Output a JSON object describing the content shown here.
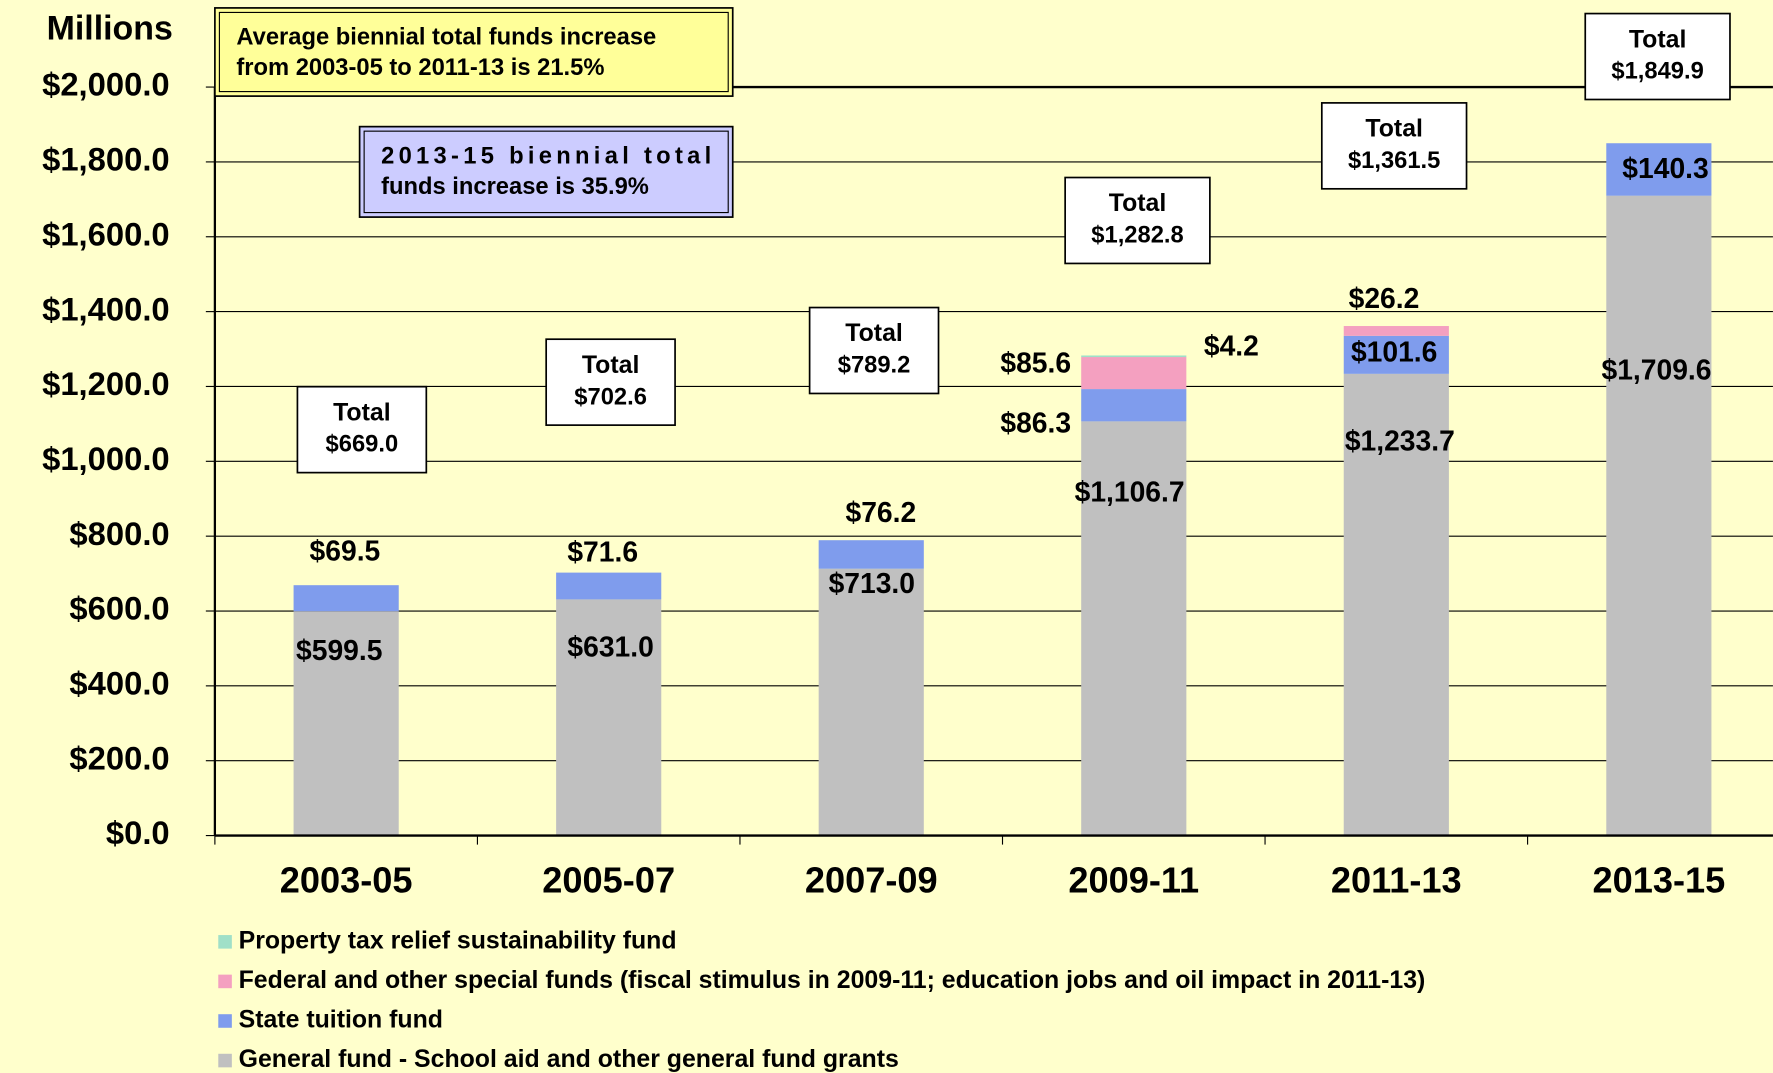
{
  "chart_data": {
    "type": "stacked_bar",
    "y_axis_label": "Millions",
    "categories": [
      "2003-05",
      "2005-07",
      "2007-09",
      "2009-11",
      "2011-13",
      "2013-15"
    ],
    "series": [
      {
        "name": "General fund - School aid and other general fund grants",
        "color": "#c0c0c0",
        "values": [
          599.5,
          631.0,
          713.0,
          1106.7,
          1233.7,
          1709.6
        ],
        "value_labels": [
          "$599.5",
          "$631.0",
          "$713.0",
          "$1,106.7",
          "$1,233.7",
          "$1,709.6"
        ]
      },
      {
        "name": "State tuition fund",
        "color": "#7f9ced",
        "values": [
          69.5,
          71.6,
          76.2,
          86.3,
          101.6,
          140.3
        ],
        "value_labels": [
          "$69.5",
          "$71.6",
          "$76.2",
          "$86.3",
          "$101.6",
          "$140.3"
        ]
      },
      {
        "name": "Federal and other special funds (fiscal stimulus in 2009-11; education jobs and oil impact in 2011-13)",
        "color": "#f4a0c0",
        "values": [
          null,
          null,
          null,
          85.6,
          26.2,
          null
        ],
        "value_labels": [
          null,
          null,
          null,
          "$85.6",
          "$26.2",
          null
        ]
      },
      {
        "name": "Property tax relief sustainability fund",
        "color": "#a0e0c8",
        "values": [
          null,
          null,
          null,
          4.2,
          null,
          null
        ],
        "value_labels": [
          null,
          null,
          null,
          "$4.2",
          null,
          null
        ]
      }
    ],
    "totals": {
      "label": "Total",
      "values": [
        669.0,
        702.6,
        789.2,
        1282.8,
        1361.5,
        1849.9
      ],
      "value_labels": [
        "$669.0",
        "$702.6",
        "$789.2",
        "$1,282.8",
        "$1,361.5",
        "$1,849.9"
      ]
    },
    "ylim": [
      0,
      2000
    ],
    "yticks": [
      {
        "value": 0,
        "label": "$0.0"
      },
      {
        "value": 200,
        "label": "$200.0"
      },
      {
        "value": 400,
        "label": "$400.0"
      },
      {
        "value": 600,
        "label": "$600.0"
      },
      {
        "value": 800,
        "label": "$800.0"
      },
      {
        "value": 1000,
        "label": "$1,000.0"
      },
      {
        "value": 1200,
        "label": "$1,200.0"
      },
      {
        "value": 1400,
        "label": "$1,400.0"
      },
      {
        "value": 1600,
        "label": "$1,600.0"
      },
      {
        "value": 1800,
        "label": "$1,800.0"
      },
      {
        "value": 2000,
        "label": "$2,000.0"
      }
    ],
    "grid": true,
    "legend": "bottom",
    "annotations": [
      {
        "lines": [
          "Average biennial total funds increase",
          "from 2003-05 to 2011-13 is 21.5%"
        ],
        "color": "#ffff99"
      },
      {
        "lines": [
          "2013-15    biennial    total",
          "funds increase is 35.9%"
        ],
        "color": "#ccccff"
      }
    ]
  }
}
